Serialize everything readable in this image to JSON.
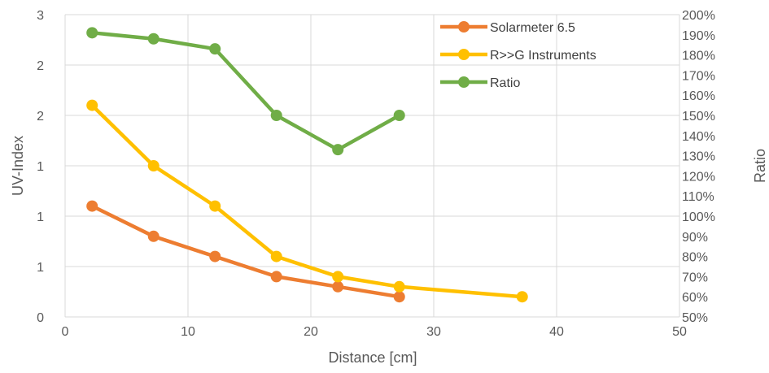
{
  "chart_data": {
    "type": "line",
    "xlabel": "Distance [cm]",
    "ylabel": "UV-Index",
    "y2label": "Ratio",
    "xlim": [
      0,
      50
    ],
    "x_ticks": [
      0,
      10,
      20,
      30,
      40,
      50
    ],
    "ylim": [
      0,
      3
    ],
    "y_tick_values": [
      0,
      0.5,
      1,
      1.5,
      2,
      2.5,
      3
    ],
    "y_tick_labels": [
      "0",
      "1",
      "1",
      "1",
      "2",
      "2",
      "3"
    ],
    "y2lim": [
      0.5,
      2.0
    ],
    "y2_ticks": [
      "50%",
      "60%",
      "70%",
      "80%",
      "90%",
      "100%",
      "110%",
      "120%",
      "130%",
      "140%",
      "150%",
      "160%",
      "170%",
      "180%",
      "190%",
      "200%"
    ],
    "grid": true,
    "legend_position": "top-right",
    "series": [
      {
        "name": "Solarmeter 6.5",
        "color": "#ED7D31",
        "axis": "left",
        "x": [
          2.2,
          7.2,
          12.2,
          17.2,
          22.2,
          27.2
        ],
        "y": [
          1.1,
          0.8,
          0.6,
          0.4,
          0.3,
          0.2
        ]
      },
      {
        "name": "R>>G Instruments",
        "color": "#FFC000",
        "axis": "left",
        "x": [
          2.2,
          7.2,
          12.2,
          17.2,
          22.2,
          27.2,
          37.2
        ],
        "y": [
          2.1,
          1.5,
          1.1,
          0.6,
          0.4,
          0.3,
          0.2
        ]
      },
      {
        "name": "Ratio",
        "color": "#70AD47",
        "axis": "right",
        "x": [
          2.2,
          7.2,
          12.2,
          17.2,
          22.2,
          27.2
        ],
        "y": [
          1.91,
          1.88,
          1.83,
          1.5,
          1.33,
          1.5
        ]
      }
    ]
  }
}
